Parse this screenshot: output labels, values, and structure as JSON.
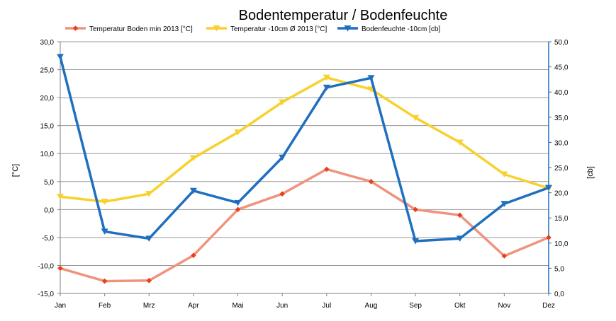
{
  "chart_data": {
    "type": "line",
    "title": "Bodentemperatur / Bodenfeuchte",
    "categories": [
      "Jan",
      "Feb",
      "Mrz",
      "Apr",
      "Mai",
      "Jun",
      "Jul",
      "Aug",
      "Sep",
      "Okt",
      "Nov",
      "Dez"
    ],
    "y_left": {
      "label": "[°C]",
      "range": [
        -15,
        30
      ],
      "step": 5,
      "tick_labels": [
        "-15,0",
        "-10,0",
        "-5,0",
        "0,0",
        "5,0",
        "10,0",
        "15,0",
        "20,0",
        "25,0",
        "30,0"
      ]
    },
    "y_right": {
      "label": "[cb]",
      "range": [
        0,
        50
      ],
      "step": 5,
      "tick_labels": [
        "0,0",
        "5,0",
        "10,0",
        "15,0",
        "20,0",
        "25,0",
        "30,0",
        "35,0",
        "40,0",
        "45,0",
        "50,0"
      ]
    },
    "grid": true,
    "legend_position": "top",
    "series": [
      {
        "name": "Temperatur Boden min 2013 [°C]",
        "axis": "left",
        "color": "#F0937E",
        "marker_color": "#E8401C",
        "marker": "diamond",
        "values": [
          -10.5,
          -12.8,
          -12.7,
          -8.2,
          0.0,
          2.8,
          7.2,
          5.0,
          0.0,
          -1.0,
          -8.3,
          -5.0
        ]
      },
      {
        "name": "Temperatur -10cm Ø 2013 [°C]",
        "axis": "left",
        "color": "#F7D12C",
        "marker_color": "#F7D12C",
        "marker": "triangle-down",
        "values": [
          2.3,
          1.4,
          2.8,
          9.2,
          13.8,
          19.2,
          23.6,
          21.5,
          16.4,
          12.0,
          6.3,
          3.8
        ]
      },
      {
        "name": "Bodenfeuchte -10cm [cb]",
        "axis": "right",
        "color": "#1F6FBF",
        "marker_color": "#1F6FBF",
        "marker": "triangle-down",
        "values": [
          47.0,
          12.3,
          10.9,
          20.4,
          18.0,
          27.0,
          40.9,
          42.8,
          10.4,
          10.9,
          17.8,
          21.0
        ]
      }
    ]
  }
}
